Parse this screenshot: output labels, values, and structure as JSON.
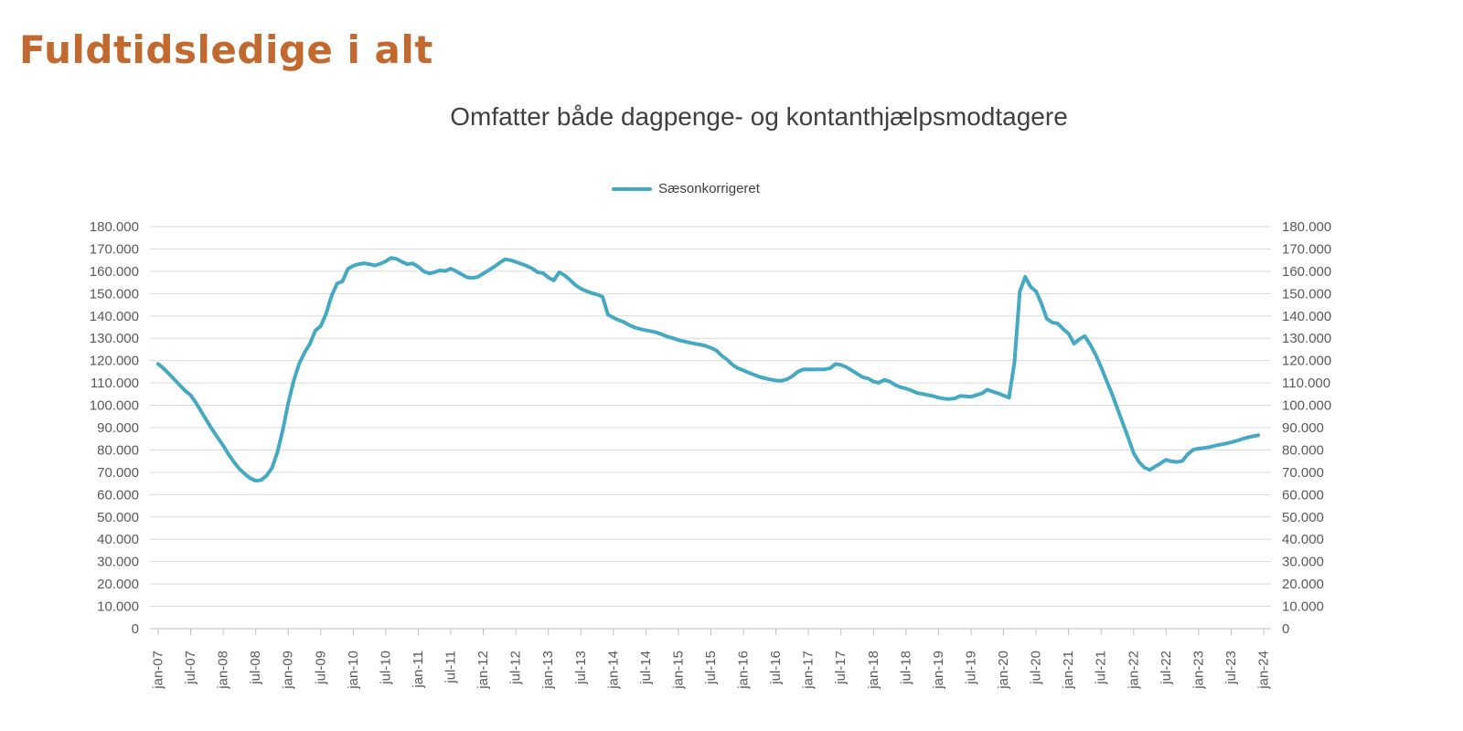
{
  "header": {
    "title": "Fuldtidsledige i alt",
    "title_color": "#C2692F"
  },
  "chart_data": {
    "type": "line",
    "title": "Omfatter både dagpenge- og kontanthjælpsmodtagere",
    "title_color": "#3F3F3F",
    "legend_position": "top-center",
    "grid": true,
    "colors": {
      "gridline": "#D9D9D9",
      "axis_line": "#BFBFBF",
      "tick_label": "#595959"
    },
    "ylim": [
      0,
      180000
    ],
    "y_tick_values": [
      0,
      10000,
      20000,
      30000,
      40000,
      50000,
      60000,
      70000,
      80000,
      90000,
      100000,
      110000,
      120000,
      130000,
      140000,
      150000,
      160000,
      170000,
      180000
    ],
    "y_tick_labels": [
      "0",
      "10.000",
      "20.000",
      "30.000",
      "40.000",
      "50.000",
      "60.000",
      "70.000",
      "80.000",
      "90.000",
      "100.000",
      "110.000",
      "120.000",
      "130.000",
      "140.000",
      "150.000",
      "160.000",
      "170.000",
      "180.000"
    ],
    "y_axis_sides": [
      "left",
      "right"
    ],
    "x_tick_labels": [
      "jan-07",
      "jul-07",
      "jan-08",
      "jul-08",
      "jan-09",
      "jul-09",
      "jan-10",
      "jul-10",
      "jan-11",
      "jul-11",
      "jan-12",
      "jul-12",
      "jan-13",
      "jul-13",
      "jan-14",
      "jul-14",
      "jan-15",
      "jul-15",
      "jan-16",
      "jul-16",
      "jan-17",
      "jul-17",
      "jan-18",
      "jul-18",
      "jan-19",
      "jul-19",
      "jan-20",
      "jul-20",
      "jan-21",
      "jul-21",
      "jan-22",
      "jul-22",
      "jan-23",
      "jul-23",
      "jan-24"
    ],
    "x_tick_interval_months": 6,
    "x_total_months": 204,
    "series": [
      {
        "name": "Sæsonkorrigeret",
        "color": "#46A9C4",
        "start": "jan-07",
        "frequency": "monthly",
        "values": [
          118500,
          116500,
          114000,
          111500,
          109000,
          106500,
          104500,
          101000,
          97000,
          93000,
          89000,
          85500,
          82000,
          78000,
          74500,
          71500,
          69200,
          67300,
          66200,
          66500,
          68500,
          72000,
          79000,
          89000,
          101000,
          111000,
          118500,
          123500,
          127500,
          133500,
          135500,
          141000,
          149000,
          154500,
          155500,
          161000,
          162500,
          163200,
          163600,
          163200,
          162600,
          163400,
          164500,
          166000,
          165500,
          164200,
          163200,
          163500,
          162000,
          160000,
          159000,
          159600,
          160400,
          160100,
          161200,
          160000,
          158600,
          157300,
          157000,
          157500,
          159000,
          160500,
          162000,
          163800,
          165300,
          165000,
          164200,
          163300,
          162400,
          161300,
          159600,
          159200,
          157200,
          155900,
          159600,
          158200,
          156100,
          153800,
          152200,
          151100,
          150200,
          149600,
          148600,
          140600,
          139200,
          138100,
          137200,
          135800,
          134800,
          134100,
          133600,
          133100,
          132600,
          131700,
          130700,
          130100,
          129200,
          128600,
          128100,
          127600,
          127200,
          126600,
          125700,
          124600,
          122200,
          120400,
          118100,
          116600,
          115600,
          114600,
          113600,
          112700,
          112100,
          111500,
          111100,
          111000,
          111600,
          113000,
          115000,
          116000,
          116100,
          116000,
          116100,
          116100,
          116600,
          118500,
          118100,
          117100,
          115600,
          114100,
          112600,
          112000,
          110600,
          110100,
          111400,
          110600,
          109100,
          108100,
          107500,
          106600,
          105600,
          105100,
          104600,
          104100,
          103400,
          103000,
          102800,
          103100,
          104200,
          104000,
          103800,
          104600,
          105300,
          107000,
          106100,
          105400,
          104400,
          103400,
          119000,
          151000,
          157500,
          153000,
          151000,
          145500,
          138700,
          137100,
          136600,
          134200,
          132100,
          127600,
          129600,
          131000,
          127100,
          122600,
          117100,
          111100,
          105100,
          98600,
          92100,
          85600,
          78600,
          74600,
          72100,
          71100,
          72600,
          74100,
          75600,
          74900,
          74600,
          75100,
          78100,
          80100,
          80600,
          80900,
          81300,
          81900,
          82400,
          82900,
          83400,
          84100,
          84900,
          85600,
          86100,
          86600
        ]
      }
    ]
  }
}
